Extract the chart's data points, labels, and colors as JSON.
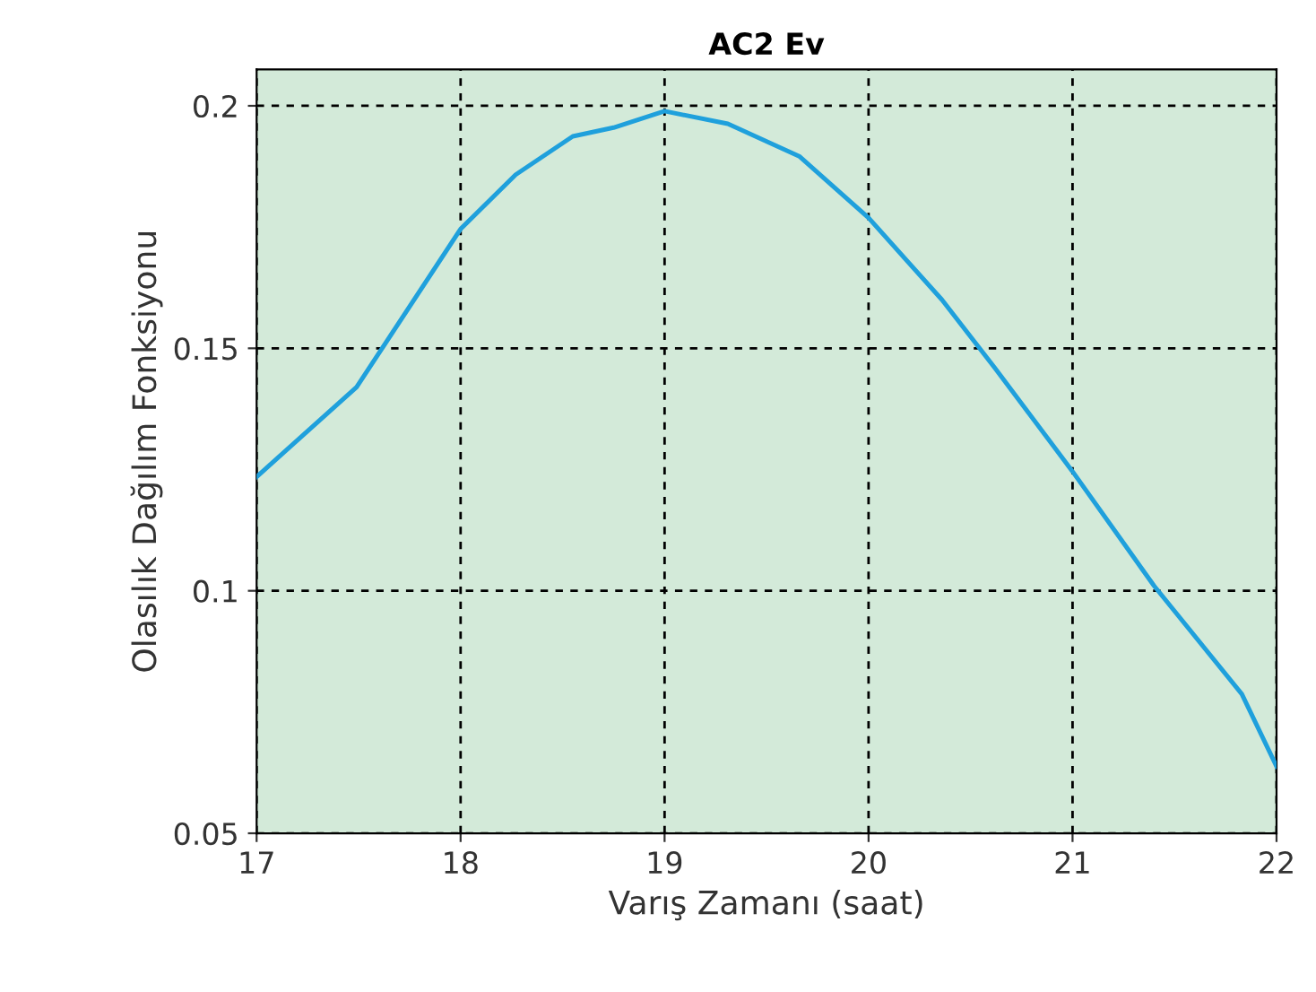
{
  "chart_data": {
    "type": "line",
    "title": "AC2 Ev",
    "xlabel": "Varış Zamanı (saat)",
    "ylabel": "Olasılık Dağılım Fonksiyonu",
    "series": [
      {
        "color": "#1fa0dc",
        "x": [
          17,
          17.49,
          18,
          18.27,
          18.55,
          18.75,
          19,
          19.31,
          19.66,
          20,
          20.36,
          20.62,
          21,
          21.4,
          21.83,
          22
        ],
        "values": [
          0.1235,
          0.142,
          0.1746,
          0.1858,
          0.1937,
          0.1955,
          0.1989,
          0.1963,
          0.1896,
          0.1769,
          0.16,
          0.1459,
          0.1246,
          0.101,
          0.0787,
          0.0638
        ]
      }
    ],
    "xlim": [
      17,
      22
    ],
    "xticks": [
      17,
      18,
      19,
      20,
      21,
      22
    ],
    "ylim": [
      0.05,
      0.2075
    ],
    "yticks": [
      0.05,
      0.1,
      0.15,
      0.2
    ],
    "grid": true,
    "legend": false,
    "marker": "none",
    "line_style": "solid"
  }
}
